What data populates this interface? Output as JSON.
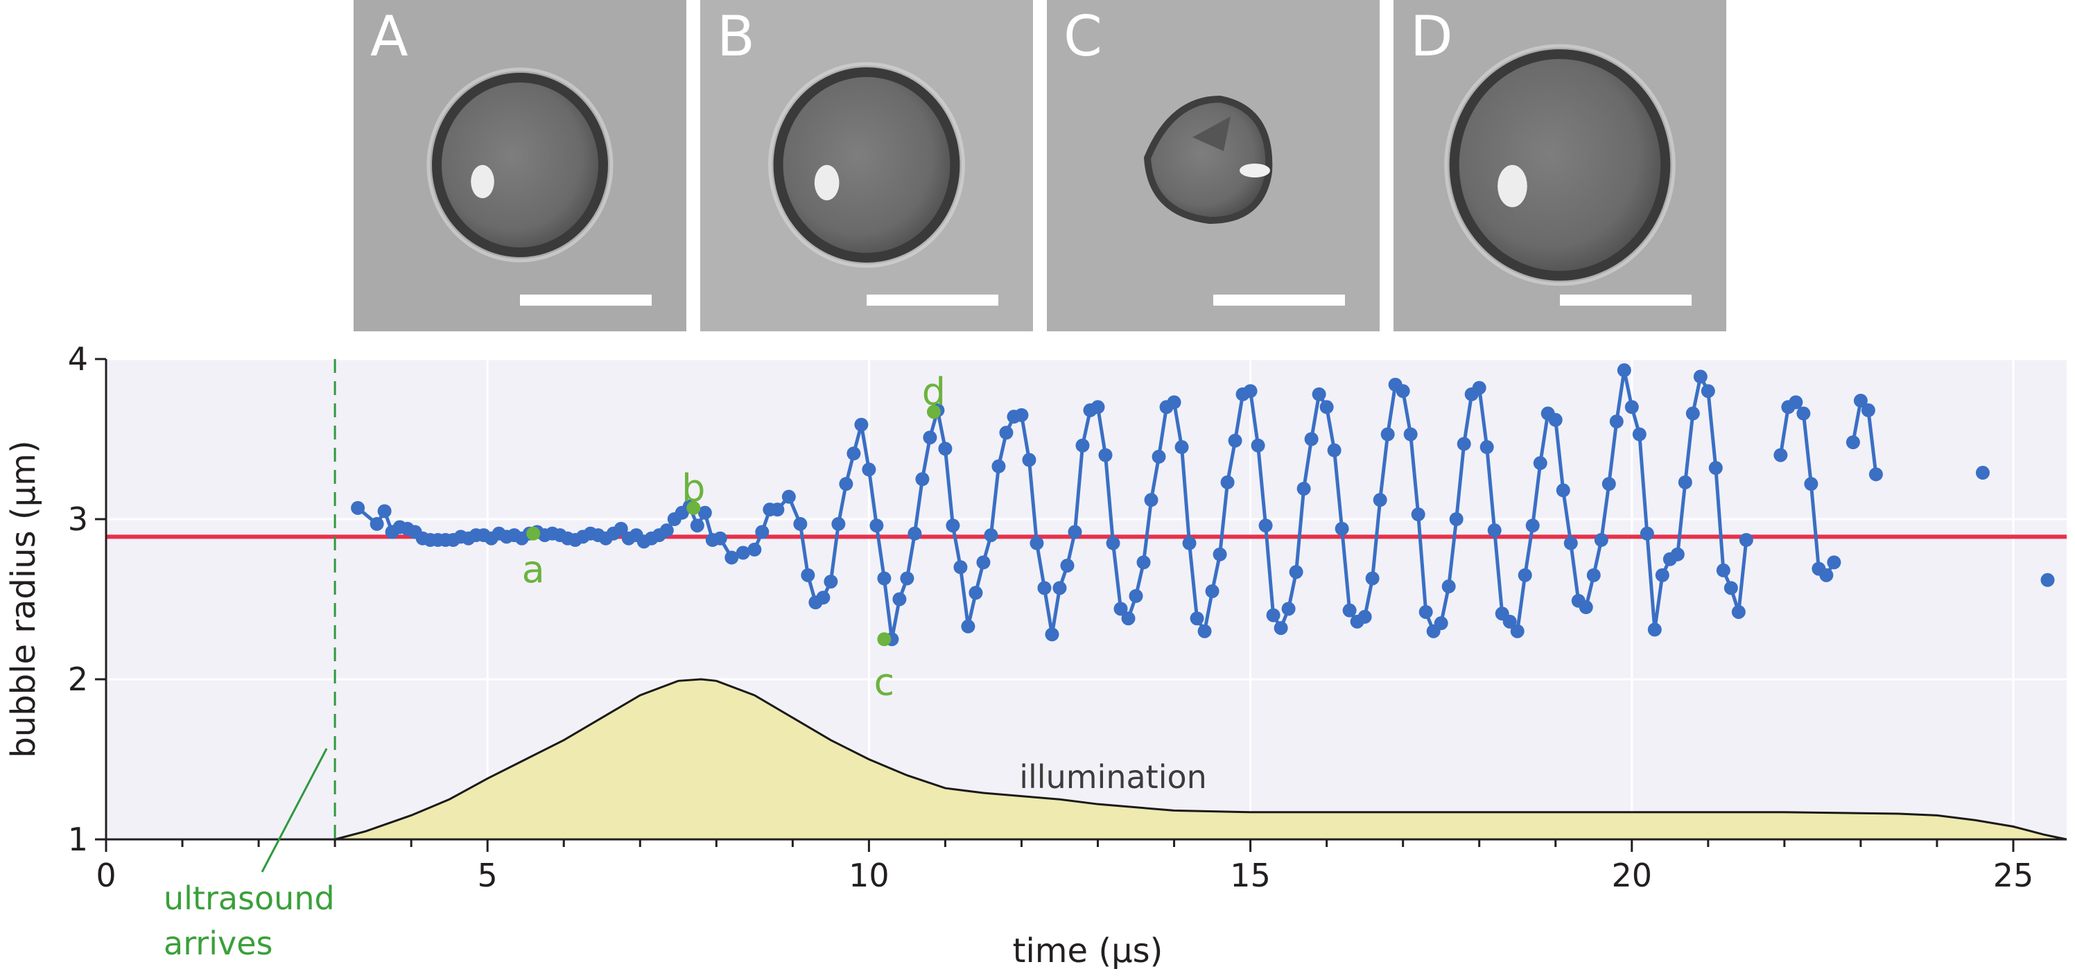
{
  "panels": [
    {
      "label": "A",
      "radius_um": 2.9
    },
    {
      "label": "B",
      "radius_um": 3.08
    },
    {
      "label": "C",
      "radius_um": 2.25
    },
    {
      "label": "D",
      "radius_um": 3.68
    }
  ],
  "colors": {
    "series": "#3a6fc4",
    "equilibrium": "#e8304a",
    "highlight": "#6cb33f",
    "arrival": "#2e9a3e",
    "illumination_fill": "#eeeab0",
    "plot_bg": "#f2f1f8",
    "grid": "#ffffff",
    "axis": "#231f20"
  },
  "chart_data": {
    "type": "scatter",
    "xlabel": "time (µs)",
    "ylabel": "bubble radius (µm)",
    "xlim": [
      0,
      25.7
    ],
    "ylim": [
      1,
      4
    ],
    "x_ticks": [
      0,
      5,
      10,
      15,
      20,
      25
    ],
    "y_ticks": [
      1,
      2,
      3,
      4
    ],
    "x_minor_step": 1,
    "grid": true,
    "equilibrium_radius": 2.89,
    "ultrasound_arrival_time": 3.0,
    "annotations": {
      "arrival_label": [
        "ultrasound",
        "arrives"
      ],
      "illumination_label": "illumination"
    },
    "series": [
      {
        "segments": [
          [
            [
              3.3,
              3.07
            ],
            [
              3.55,
              2.97
            ],
            [
              3.65,
              3.05
            ],
            [
              3.75,
              2.92
            ],
            [
              3.85,
              2.95
            ],
            [
              3.95,
              2.94
            ],
            [
              4.05,
              2.92
            ],
            [
              4.15,
              2.88
            ],
            [
              4.25,
              2.87
            ],
            [
              4.35,
              2.87
            ],
            [
              4.45,
              2.87
            ],
            [
              4.55,
              2.87
            ],
            [
              4.65,
              2.89
            ],
            [
              4.75,
              2.88
            ],
            [
              4.85,
              2.9
            ],
            [
              4.95,
              2.9
            ],
            [
              5.05,
              2.88
            ],
            [
              5.15,
              2.91
            ],
            [
              5.25,
              2.89
            ],
            [
              5.35,
              2.9
            ],
            [
              5.45,
              2.88
            ],
            [
              5.55,
              2.91
            ],
            [
              5.65,
              2.92
            ],
            [
              5.75,
              2.9
            ],
            [
              5.85,
              2.91
            ],
            [
              5.95,
              2.9
            ],
            [
              6.05,
              2.88
            ],
            [
              6.15,
              2.87
            ],
            [
              6.25,
              2.89
            ],
            [
              6.35,
              2.91
            ],
            [
              6.45,
              2.9
            ],
            [
              6.55,
              2.88
            ],
            [
              6.65,
              2.91
            ],
            [
              6.75,
              2.94
            ],
            [
              6.85,
              2.88
            ],
            [
              6.95,
              2.9
            ],
            [
              7.05,
              2.86
            ],
            [
              7.15,
              2.88
            ],
            [
              7.25,
              2.9
            ],
            [
              7.35,
              2.93
            ],
            [
              7.45,
              3.0
            ],
            [
              7.55,
              3.04
            ],
            [
              7.65,
              3.08
            ],
            [
              7.75,
              2.96
            ],
            [
              7.85,
              3.04
            ],
            [
              7.95,
              2.87
            ],
            [
              8.05,
              2.88
            ],
            [
              8.2,
              2.76
            ],
            [
              8.35,
              2.79
            ],
            [
              8.5,
              2.81
            ],
            [
              8.6,
              2.92
            ],
            [
              8.7,
              3.06
            ],
            [
              8.8,
              3.06
            ],
            [
              8.95,
              3.14
            ],
            [
              9.1,
              2.97
            ],
            [
              9.2,
              2.65
            ],
            [
              9.3,
              2.48
            ],
            [
              9.4,
              2.51
            ],
            [
              9.5,
              2.61
            ],
            [
              9.6,
              2.97
            ],
            [
              9.7,
              3.22
            ],
            [
              9.8,
              3.41
            ],
            [
              9.9,
              3.59
            ],
            [
              10.0,
              3.31
            ],
            [
              10.1,
              2.96
            ],
            [
              10.2,
              2.63
            ],
            [
              10.3,
              2.25
            ],
            [
              10.4,
              2.5
            ],
            [
              10.5,
              2.63
            ],
            [
              10.6,
              2.91
            ],
            [
              10.7,
              3.25
            ],
            [
              10.8,
              3.51
            ],
            [
              10.9,
              3.68
            ],
            [
              11.0,
              3.44
            ],
            [
              11.1,
              2.96
            ],
            [
              11.2,
              2.7
            ],
            [
              11.3,
              2.33
            ],
            [
              11.4,
              2.54
            ],
            [
              11.5,
              2.73
            ],
            [
              11.6,
              2.9
            ],
            [
              11.7,
              3.33
            ],
            [
              11.8,
              3.54
            ],
            [
              11.9,
              3.64
            ],
            [
              12.0,
              3.65
            ],
            [
              12.1,
              3.37
            ],
            [
              12.2,
              2.85
            ],
            [
              12.3,
              2.57
            ],
            [
              12.4,
              2.28
            ],
            [
              12.5,
              2.57
            ],
            [
              12.6,
              2.71
            ],
            [
              12.7,
              2.92
            ],
            [
              12.8,
              3.46
            ],
            [
              12.9,
              3.68
            ],
            [
              13.0,
              3.7
            ],
            [
              13.1,
              3.4
            ],
            [
              13.2,
              2.85
            ],
            [
              13.3,
              2.44
            ],
            [
              13.4,
              2.38
            ],
            [
              13.5,
              2.52
            ],
            [
              13.6,
              2.73
            ],
            [
              13.7,
              3.12
            ],
            [
              13.8,
              3.39
            ],
            [
              13.9,
              3.7
            ],
            [
              14.0,
              3.73
            ],
            [
              14.1,
              3.45
            ],
            [
              14.2,
              2.85
            ],
            [
              14.3,
              2.38
            ],
            [
              14.4,
              2.3
            ],
            [
              14.5,
              2.55
            ],
            [
              14.6,
              2.78
            ],
            [
              14.7,
              3.23
            ],
            [
              14.8,
              3.49
            ],
            [
              14.9,
              3.78
            ],
            [
              15.0,
              3.8
            ],
            [
              15.1,
              3.46
            ],
            [
              15.2,
              2.96
            ],
            [
              15.3,
              2.4
            ],
            [
              15.4,
              2.32
            ],
            [
              15.5,
              2.44
            ],
            [
              15.6,
              2.67
            ],
            [
              15.7,
              3.19
            ],
            [
              15.8,
              3.5
            ],
            [
              15.9,
              3.78
            ],
            [
              16.0,
              3.7
            ],
            [
              16.1,
              3.43
            ],
            [
              16.2,
              2.94
            ],
            [
              16.3,
              2.43
            ],
            [
              16.4,
              2.36
            ],
            [
              16.5,
              2.39
            ],
            [
              16.6,
              2.63
            ],
            [
              16.7,
              3.12
            ],
            [
              16.8,
              3.53
            ],
            [
              16.9,
              3.84
            ],
            [
              17.0,
              3.8
            ],
            [
              17.1,
              3.53
            ],
            [
              17.2,
              3.03
            ],
            [
              17.3,
              2.42
            ],
            [
              17.4,
              2.3
            ],
            [
              17.5,
              2.35
            ],
            [
              17.6,
              2.58
            ],
            [
              17.7,
              3.0
            ],
            [
              17.8,
              3.47
            ],
            [
              17.9,
              3.78
            ],
            [
              18.0,
              3.82
            ],
            [
              18.1,
              3.45
            ],
            [
              18.2,
              2.93
            ],
            [
              18.3,
              2.41
            ],
            [
              18.4,
              2.36
            ],
            [
              18.5,
              2.3
            ],
            [
              18.6,
              2.65
            ],
            [
              18.7,
              2.96
            ],
            [
              18.8,
              3.35
            ],
            [
              18.9,
              3.66
            ],
            [
              19.0,
              3.62
            ],
            [
              19.1,
              3.18
            ],
            [
              19.2,
              2.85
            ],
            [
              19.3,
              2.49
            ],
            [
              19.4,
              2.45
            ],
            [
              19.5,
              2.65
            ],
            [
              19.6,
              2.87
            ],
            [
              19.7,
              3.22
            ],
            [
              19.8,
              3.61
            ],
            [
              19.9,
              3.93
            ],
            [
              20.0,
              3.7
            ],
            [
              20.1,
              3.53
            ],
            [
              20.2,
              2.91
            ],
            [
              20.3,
              2.31
            ],
            [
              20.4,
              2.65
            ],
            [
              20.5,
              2.75
            ],
            [
              20.6,
              2.78
            ],
            [
              20.7,
              3.23
            ],
            [
              20.8,
              3.66
            ],
            [
              20.9,
              3.89
            ],
            [
              21.0,
              3.8
            ],
            [
              21.1,
              3.32
            ],
            [
              21.2,
              2.68
            ],
            [
              21.3,
              2.57
            ],
            [
              21.4,
              2.42
            ],
            [
              21.5,
              2.87
            ]
          ],
          [
            [
              21.95,
              3.4
            ],
            [
              22.05,
              3.7
            ],
            [
              22.15,
              3.73
            ],
            [
              22.25,
              3.66
            ],
            [
              22.35,
              3.22
            ],
            [
              22.45,
              2.69
            ],
            [
              22.55,
              2.65
            ],
            [
              22.65,
              2.73
            ]
          ],
          [
            [
              22.9,
              3.48
            ],
            [
              23.0,
              3.74
            ],
            [
              23.1,
              3.68
            ],
            [
              23.2,
              3.28
            ]
          ]
        ],
        "isolated_points": [
          [
            24.6,
            3.29
          ],
          [
            25.45,
            2.62
          ]
        ],
        "highlighted_points": [
          {
            "label": "a",
            "x": 5.6,
            "y": 2.91
          },
          {
            "label": "b",
            "x": 7.7,
            "y": 3.07
          },
          {
            "label": "c",
            "x": 10.2,
            "y": 2.25
          },
          {
            "label": "d",
            "x": 10.85,
            "y": 3.67
          }
        ]
      }
    ],
    "illumination_envelope": [
      [
        0,
        1.0
      ],
      [
        2.7,
        1.0
      ],
      [
        3.0,
        1.0
      ],
      [
        3.4,
        1.05
      ],
      [
        4.0,
        1.15
      ],
      [
        4.5,
        1.25
      ],
      [
        5.0,
        1.38
      ],
      [
        5.5,
        1.5
      ],
      [
        6.0,
        1.62
      ],
      [
        6.5,
        1.76
      ],
      [
        7.0,
        1.9
      ],
      [
        7.5,
        1.99
      ],
      [
        7.8,
        2.0
      ],
      [
        8.0,
        1.99
      ],
      [
        8.5,
        1.9
      ],
      [
        9.0,
        1.76
      ],
      [
        9.5,
        1.62
      ],
      [
        10.0,
        1.5
      ],
      [
        10.5,
        1.4
      ],
      [
        11.0,
        1.32
      ],
      [
        11.5,
        1.29
      ],
      [
        12.0,
        1.27
      ],
      [
        12.5,
        1.25
      ],
      [
        13.0,
        1.22
      ],
      [
        14.0,
        1.18
      ],
      [
        15.0,
        1.17
      ],
      [
        16.0,
        1.17
      ],
      [
        20.0,
        1.17
      ],
      [
        22.0,
        1.17
      ],
      [
        23.5,
        1.16
      ],
      [
        24.0,
        1.15
      ],
      [
        24.5,
        1.12
      ],
      [
        25.0,
        1.08
      ],
      [
        25.4,
        1.03
      ],
      [
        25.7,
        1.0
      ]
    ]
  }
}
